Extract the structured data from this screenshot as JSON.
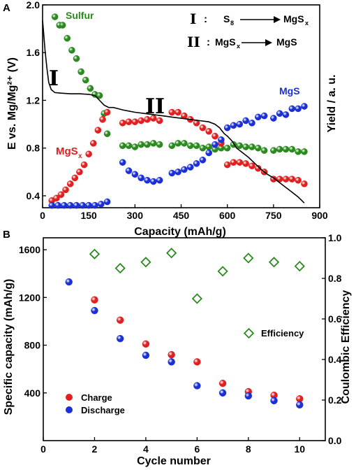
{
  "chart_data": [
    {
      "type": "line+scatter",
      "panel_label": "A",
      "xlabel": "Capacity (mAh/g)",
      "ylabel": "E vs. Mg/Mg²⁺ (V)",
      "ylabel_right": "Yield / a. u.",
      "xlim": [
        0,
        900
      ],
      "ylim": [
        0.3,
        2.0
      ],
      "xticks": [
        "0",
        "150",
        "300",
        "450",
        "600",
        "750",
        "900"
      ],
      "yticks": [
        "0.4",
        "0.8",
        "1.2",
        "1.6",
        "2.0"
      ],
      "voltage_curve": {
        "x": [
          0,
          3,
          8,
          14,
          20,
          28,
          40,
          60,
          90,
          120,
          150,
          170,
          185,
          200,
          215,
          230,
          245,
          260,
          280,
          300,
          330,
          360,
          390,
          420,
          450,
          480,
          510,
          540,
          560,
          575,
          590,
          600,
          615,
          630,
          650,
          670,
          690,
          710,
          730,
          750,
          770,
          790,
          810,
          830,
          850
        ],
        "y": [
          1.87,
          1.78,
          1.62,
          1.47,
          1.35,
          1.29,
          1.265,
          1.26,
          1.255,
          1.255,
          1.25,
          1.24,
          1.2,
          1.16,
          1.14,
          1.14,
          1.13,
          1.12,
          1.11,
          1.1,
          1.09,
          1.08,
          1.07,
          1.06,
          1.05,
          1.04,
          1.03,
          1.02,
          1.0,
          0.97,
          0.92,
          0.9,
          0.86,
          0.8,
          0.76,
          0.72,
          0.67,
          0.62,
          0.58,
          0.55,
          0.51,
          0.47,
          0.43,
          0.39,
          0.34
        ]
      },
      "series": [
        {
          "name": "Sulfur",
          "color": "#2a8a1e",
          "x": [
            40,
            55,
            65,
            80,
            95,
            110,
            125,
            140,
            155,
            170,
            185,
            200,
            210,
            260,
            280,
            300,
            320,
            340,
            360,
            380,
            420,
            440,
            460,
            480,
            500,
            520,
            540,
            560,
            580,
            600,
            620,
            640,
            660,
            680,
            700,
            720,
            750,
            770,
            790,
            810,
            830,
            850
          ],
          "y": [
            1.9,
            1.83,
            1.83,
            1.72,
            1.62,
            1.55,
            1.44,
            1.37,
            1.3,
            1.25,
            1.24,
            1.09,
            0.92,
            0.82,
            0.82,
            0.81,
            0.83,
            0.83,
            0.84,
            0.83,
            0.82,
            0.84,
            0.84,
            0.82,
            0.82,
            0.8,
            0.81,
            0.79,
            0.8,
            0.8,
            0.83,
            0.82,
            0.81,
            0.81,
            0.8,
            0.78,
            0.78,
            0.79,
            0.79,
            0.79,
            0.77,
            0.77
          ]
        },
        {
          "name": "MgSx",
          "color": "#e02020",
          "x": [
            30,
            45,
            60,
            75,
            90,
            105,
            120,
            135,
            150,
            165,
            180,
            195,
            210,
            260,
            280,
            300,
            320,
            340,
            360,
            380,
            420,
            440,
            460,
            480,
            500,
            520,
            540,
            560,
            580,
            600,
            620,
            640,
            660,
            680,
            700,
            720,
            750,
            770,
            790,
            810,
            830,
            850
          ],
          "y": [
            0.36,
            0.38,
            0.41,
            0.45,
            0.5,
            0.55,
            0.6,
            0.66,
            0.75,
            0.84,
            0.95,
            1.04,
            1.1,
            1.01,
            1.02,
            1.02,
            1.03,
            1.04,
            1.05,
            1.03,
            1.1,
            1.1,
            1.07,
            1.04,
            1.01,
            0.97,
            0.94,
            0.9,
            0.84,
            0.66,
            0.68,
            0.68,
            0.67,
            0.65,
            0.63,
            0.6,
            0.54,
            0.54,
            0.54,
            0.54,
            0.53,
            0.5
          ]
        },
        {
          "name": "MgS",
          "color": "#1a2fd6",
          "x": [
            30,
            50,
            70,
            90,
            110,
            130,
            150,
            170,
            190,
            210,
            260,
            280,
            300,
            320,
            340,
            360,
            380,
            420,
            440,
            460,
            480,
            500,
            520,
            540,
            560,
            580,
            600,
            620,
            640,
            660,
            680,
            700,
            720,
            750,
            770,
            790,
            810,
            830,
            850
          ],
          "y": [
            0.32,
            0.32,
            0.32,
            0.32,
            0.32,
            0.32,
            0.32,
            0.32,
            0.33,
            0.35,
            0.68,
            0.61,
            0.58,
            0.55,
            0.53,
            0.52,
            0.53,
            0.59,
            0.6,
            0.62,
            0.64,
            0.67,
            0.7,
            0.76,
            0.83,
            0.87,
            0.97,
            0.99,
            1.0,
            1.03,
            1.01,
            1.06,
            1.07,
            1.05,
            1.09,
            1.08,
            1.13,
            1.13,
            1.15
          ]
        }
      ],
      "legend_text": [
        {
          "roman": "I",
          "sep": ":",
          "from": "S",
          "from_sub": "8",
          "to": "MgS",
          "to_sub": "x"
        },
        {
          "roman": "II",
          "sep": ":",
          "from": "MgS",
          "from_sub": "x",
          "to": "MgS",
          "to_sub": ""
        }
      ],
      "annotations": {
        "sulfur": "Sulfur",
        "mgsx": "MgS",
        "mgsx_sub": "x",
        "mgs": "MgS",
        "region1": "I",
        "region2": "II"
      }
    },
    {
      "type": "scatter",
      "panel_label": "B",
      "xlabel": "Cycle number",
      "ylabel": "Specific capacity (mAh/g)",
      "ylabel_right": "Coulombic Efficiency",
      "xlim": [
        0,
        11
      ],
      "ylim": [
        0,
        1700
      ],
      "ylim_right": [
        0,
        1.0
      ],
      "xticks": [
        "0",
        "2",
        "4",
        "6",
        "8",
        "10"
      ],
      "yticks": [
        "400",
        "800",
        "1200",
        "1600"
      ],
      "yticks_right": [
        "0.0",
        "0.2",
        "0.4",
        "0.6",
        "0.8",
        "1.0"
      ],
      "series": [
        {
          "name": "Charge",
          "color": "#e02020",
          "axis": "left",
          "x": [
            2,
            3,
            4,
            5,
            6,
            7,
            8,
            9,
            10
          ],
          "y": [
            1180,
            1010,
            810,
            720,
            660,
            480,
            410,
            380,
            350
          ]
        },
        {
          "name": "Discharge",
          "color": "#1a2fd6",
          "axis": "left",
          "x": [
            1,
            2,
            3,
            4,
            5,
            6,
            7,
            8,
            9,
            10
          ],
          "y": [
            1330,
            1090,
            855,
            715,
            660,
            460,
            400,
            375,
            335,
            300
          ]
        },
        {
          "name": "Efficiency",
          "color": "#2a8a1e",
          "axis": "right",
          "x": [
            2,
            3,
            4,
            5,
            6,
            7,
            8,
            9,
            10
          ],
          "y": [
            0.92,
            0.85,
            0.88,
            0.925,
            0.7,
            0.835,
            0.9,
            0.88,
            0.86
          ]
        }
      ]
    }
  ]
}
